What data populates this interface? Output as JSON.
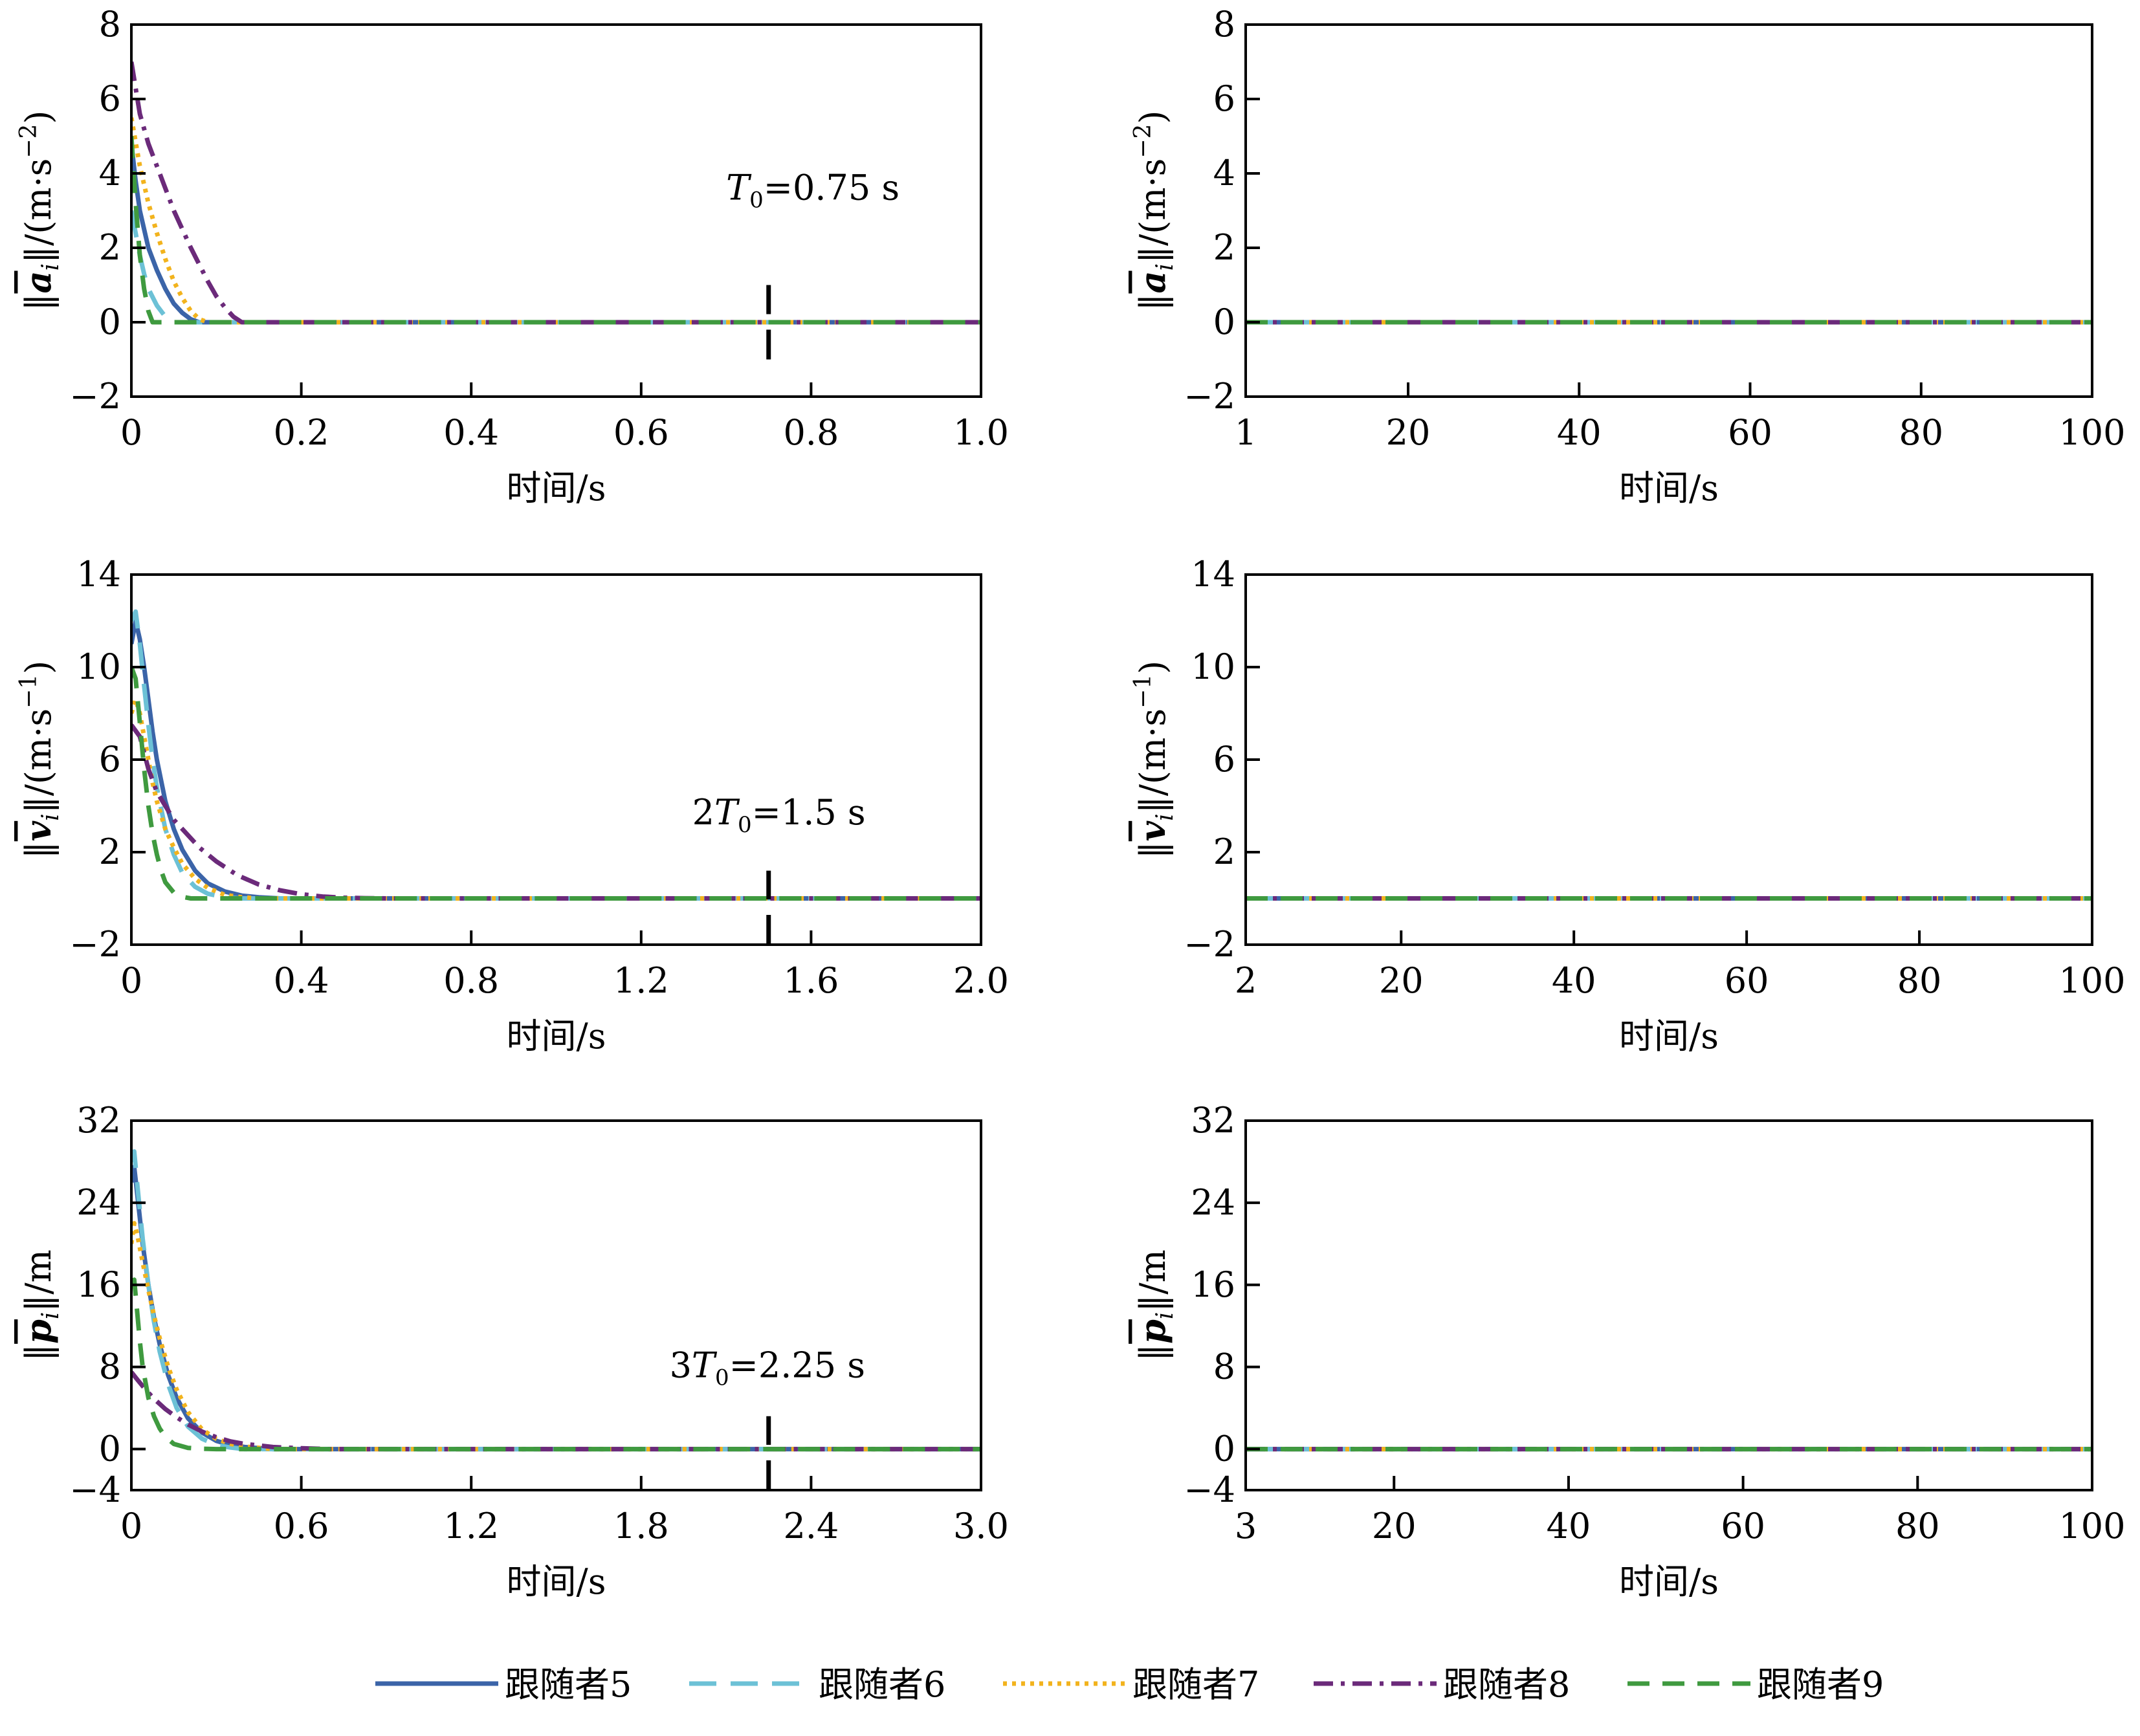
{
  "colors": {
    "series5": "#3b64a8",
    "series6": "#6cc1d6",
    "series7": "#f2b31d",
    "series8": "#6b2a7a",
    "series9": "#3f9a3f",
    "marker": "#000000"
  },
  "legend": {
    "placement": "bottom-center",
    "items": [
      {
        "key": "series5",
        "label": "跟随者5",
        "dash": ""
      },
      {
        "key": "series6",
        "label": "跟随者6",
        "dash": "42,22"
      },
      {
        "key": "series7",
        "label": "跟随者7",
        "dash": "6,8"
      },
      {
        "key": "series8",
        "label": "跟随者8",
        "dash": "30,12,6,12"
      },
      {
        "key": "series9",
        "label": "跟随者9",
        "dash": "34,20"
      }
    ]
  },
  "chart_data": [
    {
      "type": "line",
      "row": 0,
      "col": 0,
      "xlabel": "时间/s",
      "ylabel_prefix": "‖",
      "ylabel_symbol": "a",
      "ylabel_sub": "i",
      "ylabel_suffix": "‖/(m·s",
      "ylabel_sup": "−2",
      "ylabel_end": ")",
      "xlim": [
        0,
        1.0
      ],
      "ylim": [
        -2,
        8
      ],
      "xticks": [
        0,
        0.2,
        0.4,
        0.6,
        0.8,
        1.0
      ],
      "xtick_labels": [
        "0",
        "0.2",
        "0.4",
        "0.6",
        "0.8",
        "1.0"
      ],
      "yticks": [
        -2,
        0,
        2,
        4,
        6,
        8
      ],
      "ytick_labels": [
        "−2",
        "0",
        "2",
        "4",
        "6",
        "8"
      ],
      "grid": false,
      "marker_x": 0.75,
      "marker_range": [
        -1,
        1
      ],
      "annotation": {
        "pre": "",
        "var": "T",
        "sub": "0",
        "post": "=0.75 s",
        "x": 0.7,
        "y": 3.3
      },
      "series": [
        {
          "key": "series5",
          "x": [
            0,
            0.005,
            0.01,
            0.015,
            0.02,
            0.03,
            0.04,
            0.05,
            0.06,
            0.07,
            0.08,
            1.0
          ],
          "y": [
            4.8,
            3.8,
            3.0,
            2.5,
            2.0,
            1.4,
            0.9,
            0.5,
            0.25,
            0.08,
            0,
            0
          ]
        },
        {
          "key": "series6",
          "x": [
            0,
            0.005,
            0.01,
            0.015,
            0.02,
            0.03,
            0.04,
            0.05,
            1.0
          ],
          "y": [
            3.0,
            2.4,
            1.8,
            1.3,
            0.9,
            0.45,
            0.15,
            0,
            0
          ]
        },
        {
          "key": "series7",
          "x": [
            0,
            0.01,
            0.02,
            0.03,
            0.04,
            0.05,
            0.06,
            0.07,
            0.08,
            0.09,
            1.0
          ],
          "y": [
            5.5,
            4.2,
            3.2,
            2.4,
            1.7,
            1.1,
            0.65,
            0.3,
            0.08,
            0,
            0
          ]
        },
        {
          "key": "series8",
          "x": [
            0,
            0.01,
            0.02,
            0.03,
            0.04,
            0.05,
            0.06,
            0.07,
            0.08,
            0.09,
            0.1,
            0.11,
            0.12,
            0.13,
            1.0
          ],
          "y": [
            7.0,
            5.6,
            4.8,
            4.2,
            3.6,
            3.0,
            2.5,
            2.0,
            1.55,
            1.1,
            0.7,
            0.4,
            0.15,
            0,
            0
          ]
        },
        {
          "key": "series9",
          "x": [
            0,
            0.005,
            0.01,
            0.015,
            0.02,
            0.025,
            1.0
          ],
          "y": [
            5.0,
            3.2,
            1.8,
            0.9,
            0.3,
            0,
            0
          ]
        }
      ]
    },
    {
      "type": "line",
      "row": 0,
      "col": 1,
      "xlabel": "时间/s",
      "ylabel_prefix": "‖",
      "ylabel_symbol": "a",
      "ylabel_sub": "i",
      "ylabel_suffix": "‖/(m·s",
      "ylabel_sup": "−2",
      "ylabel_end": ")",
      "xlim": [
        1,
        100
      ],
      "ylim": [
        -2,
        8
      ],
      "xticks": [
        1,
        20,
        40,
        60,
        80,
        100
      ],
      "xtick_labels": [
        "1",
        "20",
        "40",
        "60",
        "80",
        "100"
      ],
      "yticks": [
        -2,
        0,
        2,
        4,
        6,
        8
      ],
      "ytick_labels": [
        "−2",
        "0",
        "2",
        "4",
        "6",
        "8"
      ],
      "grid": false,
      "series": [
        {
          "key": "series5",
          "x": [
            1,
            100
          ],
          "y": [
            0,
            0
          ]
        },
        {
          "key": "series6",
          "x": [
            1,
            100
          ],
          "y": [
            0,
            0
          ]
        },
        {
          "key": "series7",
          "x": [
            1,
            100
          ],
          "y": [
            0,
            0
          ]
        },
        {
          "key": "series8",
          "x": [
            1,
            100
          ],
          "y": [
            0,
            0
          ]
        },
        {
          "key": "series9",
          "x": [
            1,
            100
          ],
          "y": [
            0,
            0
          ]
        }
      ]
    },
    {
      "type": "line",
      "row": 1,
      "col": 0,
      "xlabel": "时间/s",
      "ylabel_prefix": "‖",
      "ylabel_symbol": "v",
      "ylabel_sub": "i",
      "ylabel_suffix": "‖/(m·s",
      "ylabel_sup": "−1",
      "ylabel_end": ")",
      "xlim": [
        0,
        2.0
      ],
      "ylim": [
        -2,
        14
      ],
      "xticks": [
        0,
        0.4,
        0.8,
        1.2,
        1.6,
        2.0
      ],
      "xtick_labels": [
        "0",
        "0.4",
        "0.8",
        "1.2",
        "1.6",
        "2.0"
      ],
      "yticks": [
        -2,
        2,
        6,
        10,
        14
      ],
      "ytick_labels": [
        "−2",
        "2",
        "6",
        "10",
        "14"
      ],
      "grid": false,
      "marker_x": 1.5,
      "marker_range": [
        -2,
        1.2
      ],
      "annotation": {
        "pre": "2",
        "var": "T",
        "sub": "0",
        "post": "=1.5 s",
        "x": 1.32,
        "y": 3.2
      },
      "series": [
        {
          "key": "series5",
          "x": [
            0,
            0.01,
            0.02,
            0.03,
            0.04,
            0.05,
            0.06,
            0.08,
            0.1,
            0.12,
            0.15,
            0.18,
            0.22,
            0.26,
            0.3,
            0.35,
            2.0
          ],
          "y": [
            11.0,
            12.0,
            11.2,
            10.0,
            8.6,
            7.2,
            6.0,
            4.2,
            3.0,
            2.1,
            1.2,
            0.65,
            0.3,
            0.12,
            0.05,
            0,
            0
          ]
        },
        {
          "key": "series6",
          "x": [
            0,
            0.01,
            0.02,
            0.03,
            0.04,
            0.05,
            0.06,
            0.08,
            0.1,
            0.12,
            0.15,
            0.18,
            0.22,
            0.26,
            2.0
          ],
          "y": [
            12.0,
            12.4,
            11.0,
            9.2,
            7.5,
            6.0,
            4.8,
            3.0,
            1.9,
            1.1,
            0.5,
            0.2,
            0.05,
            0,
            0
          ]
        },
        {
          "key": "series7",
          "x": [
            0,
            0.01,
            0.02,
            0.03,
            0.04,
            0.05,
            0.06,
            0.08,
            0.1,
            0.12,
            0.15,
            0.18,
            0.22,
            0.26,
            0.3,
            2.0
          ],
          "y": [
            8.0,
            8.6,
            8.0,
            7.0,
            6.0,
            5.0,
            4.2,
            3.0,
            2.2,
            1.5,
            0.85,
            0.45,
            0.15,
            0.05,
            0,
            0
          ]
        },
        {
          "key": "series8",
          "x": [
            0,
            0.02,
            0.04,
            0.06,
            0.08,
            0.1,
            0.13,
            0.16,
            0.2,
            0.25,
            0.3,
            0.35,
            0.4,
            0.45,
            0.5,
            0.55,
            0.6,
            2.0
          ],
          "y": [
            7.5,
            7.0,
            5.6,
            4.6,
            4.0,
            3.4,
            2.8,
            2.2,
            1.6,
            1.0,
            0.6,
            0.35,
            0.18,
            0.08,
            0.03,
            0.01,
            0,
            0
          ]
        },
        {
          "key": "series9",
          "x": [
            0,
            0.01,
            0.02,
            0.03,
            0.04,
            0.05,
            0.06,
            0.07,
            0.08,
            0.1,
            0.12,
            0.14,
            2.0
          ],
          "y": [
            10.0,
            9.5,
            7.6,
            5.6,
            4.0,
            2.8,
            1.9,
            1.2,
            0.7,
            0.25,
            0.07,
            0,
            0
          ]
        }
      ]
    },
    {
      "type": "line",
      "row": 1,
      "col": 1,
      "xlabel": "时间/s",
      "ylabel_prefix": "‖",
      "ylabel_symbol": "v",
      "ylabel_sub": "i",
      "ylabel_suffix": "‖/(m·s",
      "ylabel_sup": "−1",
      "ylabel_end": ")",
      "xlim": [
        2,
        100
      ],
      "ylim": [
        -2,
        14
      ],
      "xticks": [
        2,
        20,
        40,
        60,
        80,
        100
      ],
      "xtick_labels": [
        "2",
        "20",
        "40",
        "60",
        "80",
        "100"
      ],
      "yticks": [
        -2,
        2,
        6,
        10,
        14
      ],
      "ytick_labels": [
        "−2",
        "2",
        "6",
        "10",
        "14"
      ],
      "grid": false,
      "series": [
        {
          "key": "series5",
          "x": [
            2,
            100
          ],
          "y": [
            0,
            0
          ]
        },
        {
          "key": "series6",
          "x": [
            2,
            100
          ],
          "y": [
            0,
            0
          ]
        },
        {
          "key": "series7",
          "x": [
            2,
            100
          ],
          "y": [
            0,
            0
          ]
        },
        {
          "key": "series8",
          "x": [
            2,
            100
          ],
          "y": [
            0,
            0
          ]
        },
        {
          "key": "series9",
          "x": [
            2,
            100
          ],
          "y": [
            0,
            0
          ]
        }
      ]
    },
    {
      "type": "line",
      "row": 2,
      "col": 0,
      "xlabel": "时间/s",
      "ylabel_prefix": "‖",
      "ylabel_symbol": "p",
      "ylabel_sub": "i",
      "ylabel_suffix": "‖/m",
      "ylabel_sup": "",
      "ylabel_end": "",
      "xlim": [
        0,
        3.0
      ],
      "ylim": [
        -4,
        32
      ],
      "xticks": [
        0,
        0.6,
        1.2,
        1.8,
        2.4,
        3.0
      ],
      "xtick_labels": [
        "0",
        "0.6",
        "1.2",
        "1.8",
        "2.4",
        "3.0"
      ],
      "yticks": [
        -4,
        0,
        8,
        16,
        24,
        32
      ],
      "ytick_labels": [
        "−4",
        "0",
        "8",
        "16",
        "24",
        "32"
      ],
      "grid": false,
      "marker_x": 2.25,
      "marker_range": [
        -4,
        3.2
      ],
      "annotation": {
        "pre": "3",
        "var": "T",
        "sub": "0",
        "post": "=2.25 s",
        "x": 1.9,
        "y": 7.0
      },
      "series": [
        {
          "key": "series5",
          "x": [
            0,
            0.01,
            0.02,
            0.04,
            0.06,
            0.08,
            0.1,
            0.13,
            0.16,
            0.2,
            0.25,
            0.3,
            0.35,
            0.4,
            0.5,
            3.0
          ],
          "y": [
            26.0,
            27.5,
            25.0,
            20.0,
            16.0,
            12.8,
            10.2,
            7.2,
            5.0,
            3.0,
            1.6,
            0.8,
            0.4,
            0.2,
            0,
            0
          ]
        },
        {
          "key": "series6",
          "x": [
            0,
            0.01,
            0.02,
            0.04,
            0.06,
            0.08,
            0.1,
            0.13,
            0.16,
            0.2,
            0.25,
            0.3,
            0.35,
            0.4,
            3.0
          ],
          "y": [
            28.0,
            29.0,
            26.0,
            20.5,
            16.0,
            12.4,
            9.5,
            6.3,
            4.0,
            2.2,
            1.0,
            0.4,
            0.15,
            0,
            0
          ]
        },
        {
          "key": "series7",
          "x": [
            0,
            0.01,
            0.02,
            0.04,
            0.06,
            0.08,
            0.1,
            0.13,
            0.16,
            0.2,
            0.25,
            0.3,
            0.35,
            0.4,
            0.5,
            3.0
          ],
          "y": [
            20.0,
            22.0,
            21.0,
            18.2,
            15.5,
            13.0,
            10.8,
            8.0,
            5.8,
            3.6,
            1.9,
            1.0,
            0.5,
            0.25,
            0,
            0
          ]
        },
        {
          "key": "series8",
          "x": [
            0,
            0.02,
            0.05,
            0.08,
            0.12,
            0.16,
            0.2,
            0.25,
            0.3,
            0.35,
            0.4,
            0.5,
            0.6,
            0.7,
            3.0
          ],
          "y": [
            7.5,
            6.8,
            5.8,
            4.9,
            3.9,
            3.1,
            2.4,
            1.7,
            1.15,
            0.75,
            0.5,
            0.2,
            0.08,
            0,
            0
          ]
        },
        {
          "key": "series9",
          "x": [
            0,
            0.01,
            0.02,
            0.03,
            0.04,
            0.06,
            0.08,
            0.1,
            0.12,
            0.15,
            0.2,
            0.25,
            0.3,
            3.0
          ],
          "y": [
            16.0,
            16.5,
            13.5,
            10.5,
            8.0,
            5.0,
            3.2,
            2.0,
            1.2,
            0.5,
            0.12,
            0.03,
            0,
            0
          ]
        }
      ]
    },
    {
      "type": "line",
      "row": 2,
      "col": 1,
      "xlabel": "时间/s",
      "ylabel_prefix": "‖",
      "ylabel_symbol": "p",
      "ylabel_sub": "i",
      "ylabel_suffix": "‖/m",
      "ylabel_sup": "",
      "ylabel_end": "",
      "xlim": [
        3,
        100
      ],
      "ylim": [
        -4,
        32
      ],
      "xticks": [
        3,
        20,
        40,
        60,
        80,
        100
      ],
      "xtick_labels": [
        "3",
        "20",
        "40",
        "60",
        "80",
        "100"
      ],
      "yticks": [
        -4,
        0,
        8,
        16,
        24,
        32
      ],
      "ytick_labels": [
        "−4",
        "0",
        "8",
        "16",
        "24",
        "32"
      ],
      "grid": false,
      "series": [
        {
          "key": "series5",
          "x": [
            3,
            100
          ],
          "y": [
            0,
            0
          ]
        },
        {
          "key": "series6",
          "x": [
            3,
            100
          ],
          "y": [
            0,
            0
          ]
        },
        {
          "key": "series7",
          "x": [
            3,
            100
          ],
          "y": [
            0,
            0
          ]
        },
        {
          "key": "series8",
          "x": [
            3,
            100
          ],
          "y": [
            0,
            0
          ]
        },
        {
          "key": "series9",
          "x": [
            3,
            100
          ],
          "y": [
            0,
            0
          ]
        }
      ]
    }
  ]
}
